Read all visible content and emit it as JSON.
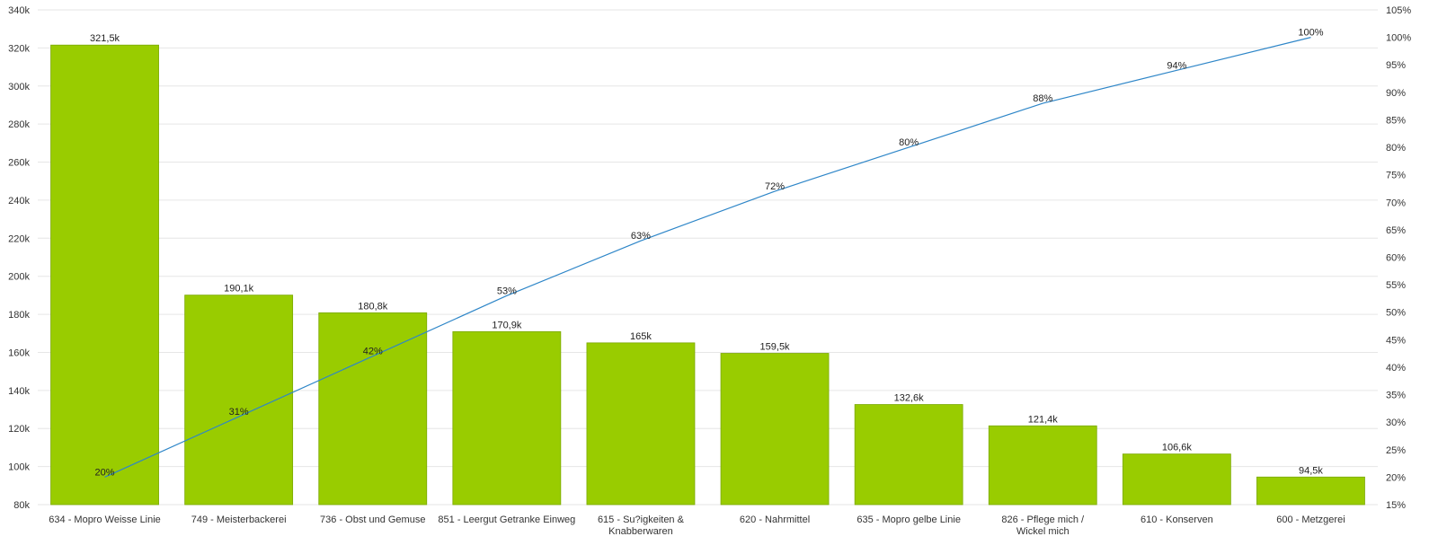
{
  "chart_data": {
    "type": "bar",
    "categories": [
      "634 - Mopro Weisse Linie",
      "749 - Meisterbackerei",
      "736 - Obst und Gemuse",
      "851 - Leergut Getranke Einweg",
      "615 - Su?igkeiten & Knabberwaren",
      "620 - Nahrmittel",
      "635 - Mopro gelbe Linie",
      "826 - Pflege mich / Wickel mich",
      "610 - Konserven",
      "600 - Metzgerei"
    ],
    "series": [
      {
        "type": "bar",
        "values": [
          321500,
          190100,
          180800,
          170900,
          165000,
          159500,
          132600,
          121400,
          106600,
          94500
        ],
        "data_labels": [
          "321,5k",
          "190,1k",
          "180,8k",
          "170,9k",
          "165k",
          "159,5k",
          "132,6k",
          "121,4k",
          "106,6k",
          "94,5k"
        ],
        "axis": "left"
      },
      {
        "type": "line",
        "values": [
          20,
          31,
          42,
          53,
          63,
          72,
          80,
          88,
          94,
          100
        ],
        "data_labels": [
          "20%",
          "31%",
          "42%",
          "53%",
          "63%",
          "72%",
          "80%",
          "88%",
          "94%",
          "100%"
        ],
        "axis": "right"
      }
    ],
    "y_left": {
      "min": 80000,
      "max": 340000,
      "ticks": [
        80000,
        100000,
        120000,
        140000,
        160000,
        180000,
        200000,
        220000,
        240000,
        260000,
        280000,
        300000,
        320000,
        340000
      ],
      "tick_labels": [
        "80k",
        "100k",
        "120k",
        "140k",
        "160k",
        "180k",
        "200k",
        "220k",
        "240k",
        "260k",
        "280k",
        "300k",
        "320k",
        "340k"
      ]
    },
    "y_right": {
      "min": 15,
      "max": 105,
      "ticks": [
        15,
        20,
        25,
        30,
        35,
        40,
        45,
        50,
        55,
        60,
        65,
        70,
        75,
        80,
        85,
        90,
        95,
        100,
        105
      ],
      "tick_labels": [
        "15%",
        "20%",
        "25%",
        "30%",
        "35%",
        "40%",
        "45%",
        "50%",
        "55%",
        "60%",
        "65%",
        "70%",
        "75%",
        "80%",
        "85%",
        "90%",
        "95%",
        "100%",
        "105%"
      ]
    },
    "grid": true,
    "legend": "none",
    "colors": {
      "bar": "#99cc00",
      "bar_border": "#7aa800",
      "line": "#2e86c8",
      "grid": "#e6e6e6"
    }
  }
}
